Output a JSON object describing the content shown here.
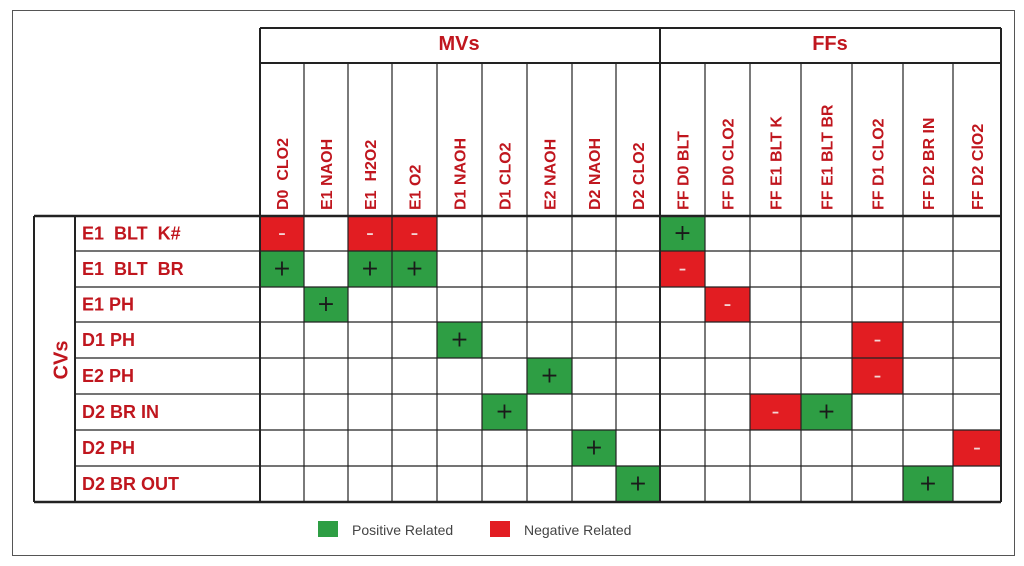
{
  "groups": {
    "mvs": "MVs",
    "ffs": "FFs",
    "cvs": "CVs"
  },
  "columns": [
    "D0  CLO2",
    "E1 NAOH",
    "E1  H2O2",
    "E1 O2",
    "D1 NAOH",
    "D1 CLO2",
    "E2 NAOH",
    "D2 NAOH",
    "D2 CLO2",
    "FF D0 BLT",
    "FF D0 CLO2",
    "FF E1 BLT K",
    "FF E1 BLT BR",
    "FF D1 CLO2",
    "FF D2 BR IN",
    "FF D2 ClO2"
  ],
  "rows": [
    "E1  BLT  K#",
    "E1  BLT  BR",
    "E1 PH",
    "D1 PH",
    "E2 PH",
    "D2 BR IN",
    "D2 PH",
    "D2 BR OUT"
  ],
  "cells": [
    {
      "row": 0,
      "col": 0,
      "sign": "-"
    },
    {
      "row": 0,
      "col": 2,
      "sign": "-"
    },
    {
      "row": 0,
      "col": 3,
      "sign": "-"
    },
    {
      "row": 0,
      "col": 9,
      "sign": "+"
    },
    {
      "row": 1,
      "col": 0,
      "sign": "+"
    },
    {
      "row": 1,
      "col": 2,
      "sign": "+"
    },
    {
      "row": 1,
      "col": 3,
      "sign": "+"
    },
    {
      "row": 1,
      "col": 9,
      "sign": "-"
    },
    {
      "row": 2,
      "col": 1,
      "sign": "+"
    },
    {
      "row": 2,
      "col": 10,
      "sign": "-"
    },
    {
      "row": 3,
      "col": 4,
      "sign": "+"
    },
    {
      "row": 3,
      "col": 13,
      "sign": "-"
    },
    {
      "row": 4,
      "col": 6,
      "sign": "+"
    },
    {
      "row": 4,
      "col": 13,
      "sign": "-"
    },
    {
      "row": 5,
      "col": 5,
      "sign": "+"
    },
    {
      "row": 5,
      "col": 11,
      "sign": "-"
    },
    {
      "row": 5,
      "col": 12,
      "sign": "+"
    },
    {
      "row": 6,
      "col": 7,
      "sign": "+"
    },
    {
      "row": 6,
      "col": 15,
      "sign": "-"
    },
    {
      "row": 7,
      "col": 8,
      "sign": "+"
    },
    {
      "row": 7,
      "col": 14,
      "sign": "+"
    }
  ],
  "legend": {
    "positive_label": "Positive Related",
    "negative_label": "Negative Related"
  },
  "colors": {
    "positive": "#2e9e44",
    "negative": "#e21d22",
    "label": "#c0161e",
    "grid": "#222222"
  }
}
